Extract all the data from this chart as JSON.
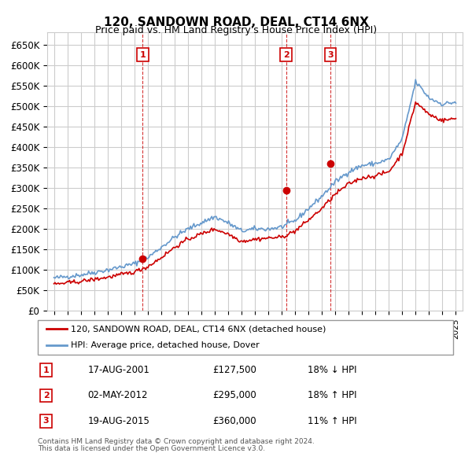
{
  "title": "120, SANDOWN ROAD, DEAL, CT14 6NX",
  "subtitle": "Price paid vs. HM Land Registry's House Price Index (HPI)",
  "ylabel_ticks": [
    "£0",
    "£50K",
    "£100K",
    "£150K",
    "£200K",
    "£250K",
    "£300K",
    "£350K",
    "£400K",
    "£450K",
    "£500K",
    "£550K",
    "£600K",
    "£650K"
  ],
  "ytick_values": [
    0,
    50000,
    100000,
    150000,
    200000,
    250000,
    300000,
    350000,
    400000,
    450000,
    500000,
    550000,
    600000,
    650000
  ],
  "hpi_color": "#6699cc",
  "price_color": "#cc0000",
  "sale_marker_color": "#cc0000",
  "vline_color": "#cc0000",
  "grid_color": "#cccccc",
  "bg_color": "#ffffff",
  "legend_border_color": "#999999",
  "sales": [
    {
      "label": "1",
      "date_x": 2001.63,
      "price": 127500,
      "hpi_pct": "18% ↓ HPI",
      "date_str": "17-AUG-2001",
      "price_str": "£127,500"
    },
    {
      "label": "2",
      "date_x": 2012.33,
      "price": 295000,
      "hpi_pct": "18% ↑ HPI",
      "date_str": "02-MAY-2012",
      "price_str": "£295,000"
    },
    {
      "label": "3",
      "date_x": 2015.63,
      "price": 360000,
      "hpi_pct": "11% ↑ HPI",
      "date_str": "19-AUG-2015",
      "price_str": "£360,000"
    }
  ],
  "legend_line1": "120, SANDOWN ROAD, DEAL, CT14 6NX (detached house)",
  "legend_line2": "HPI: Average price, detached house, Dover",
  "footer1": "Contains HM Land Registry data © Crown copyright and database right 2024.",
  "footer2": "This data is licensed under the Open Government Licence v3.0.",
  "xlim": [
    1994.5,
    2025.5
  ],
  "ylim": [
    0,
    680000
  ]
}
